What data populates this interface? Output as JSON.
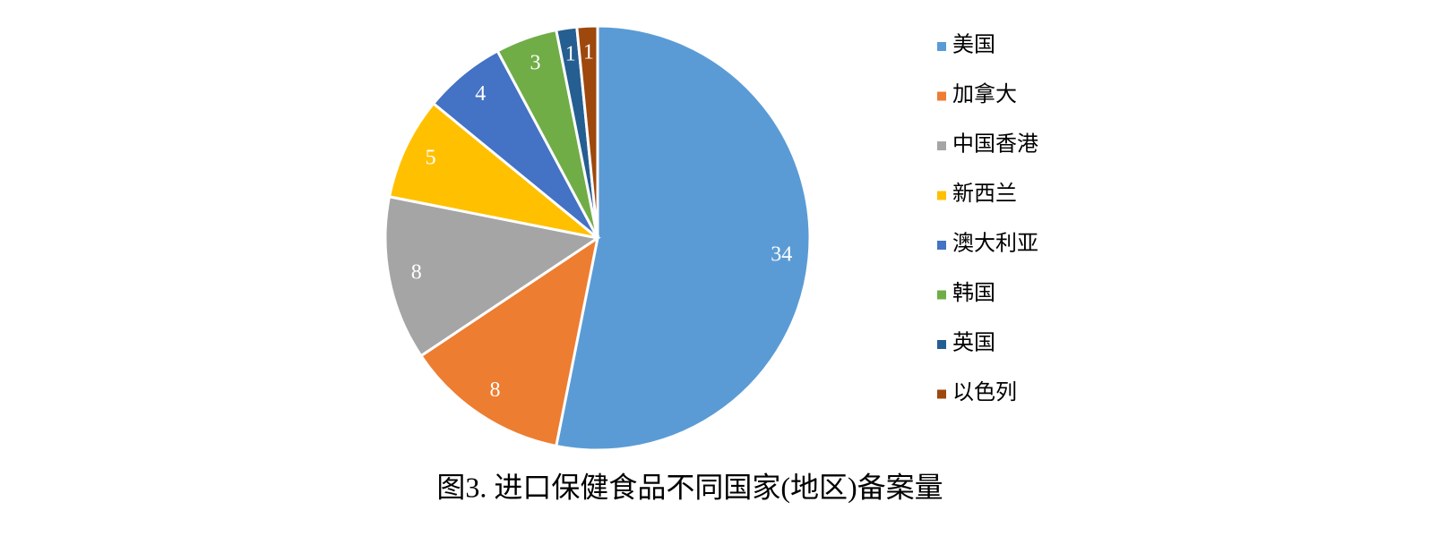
{
  "chart_data": {
    "type": "pie",
    "title": "图3. 进口保健食品不同国家(地区)备案量",
    "categories": [
      "美国",
      "加拿大",
      "中国香港",
      "新西兰",
      "澳大利亚",
      "韩国",
      "英国",
      "以色列"
    ],
    "values": [
      34,
      8,
      8,
      5,
      4,
      3,
      1,
      1
    ],
    "colors": [
      "#5b9bd5",
      "#ed7d31",
      "#a5a5a5",
      "#ffc000",
      "#4472c4",
      "#70ad47",
      "#255e91",
      "#9e480e"
    ],
    "legend": "right"
  }
}
